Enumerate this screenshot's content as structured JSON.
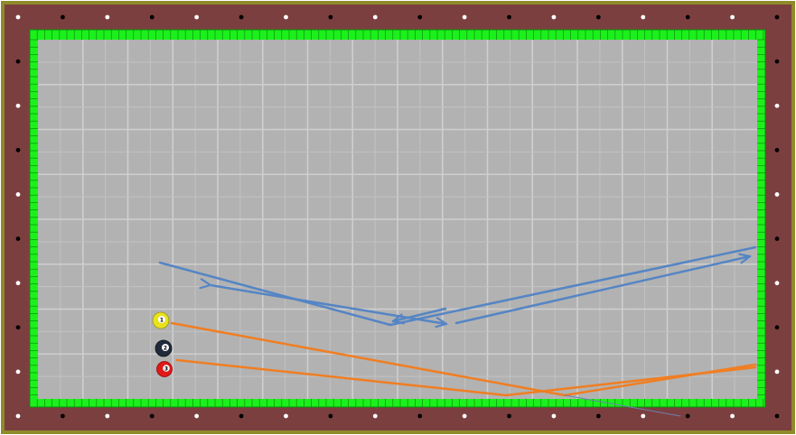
{
  "colors": {
    "frame_outer": "#8f8a2a",
    "rail": "#7c3f3f",
    "cushion": "#1cf01c",
    "cushion_edge": "#0a8f0a",
    "cloth": "#b2b2b2",
    "grid_fine": "#c2c2c2",
    "grid_major": "#cfcfcf",
    "diamond_white": "#ffffff",
    "diamond_black": "#000000",
    "blue_path": "#5585c4",
    "orange_path": "#f07e22",
    "thin_path": "#6d7fb0"
  },
  "balls": [
    {
      "number": "1",
      "name": "ball-1",
      "color": "#e8e21e"
    },
    {
      "number": "2",
      "name": "ball-2",
      "color": "#1f2b3a"
    },
    {
      "number": "3",
      "name": "ball-3",
      "color": "#e01818"
    }
  ]
}
